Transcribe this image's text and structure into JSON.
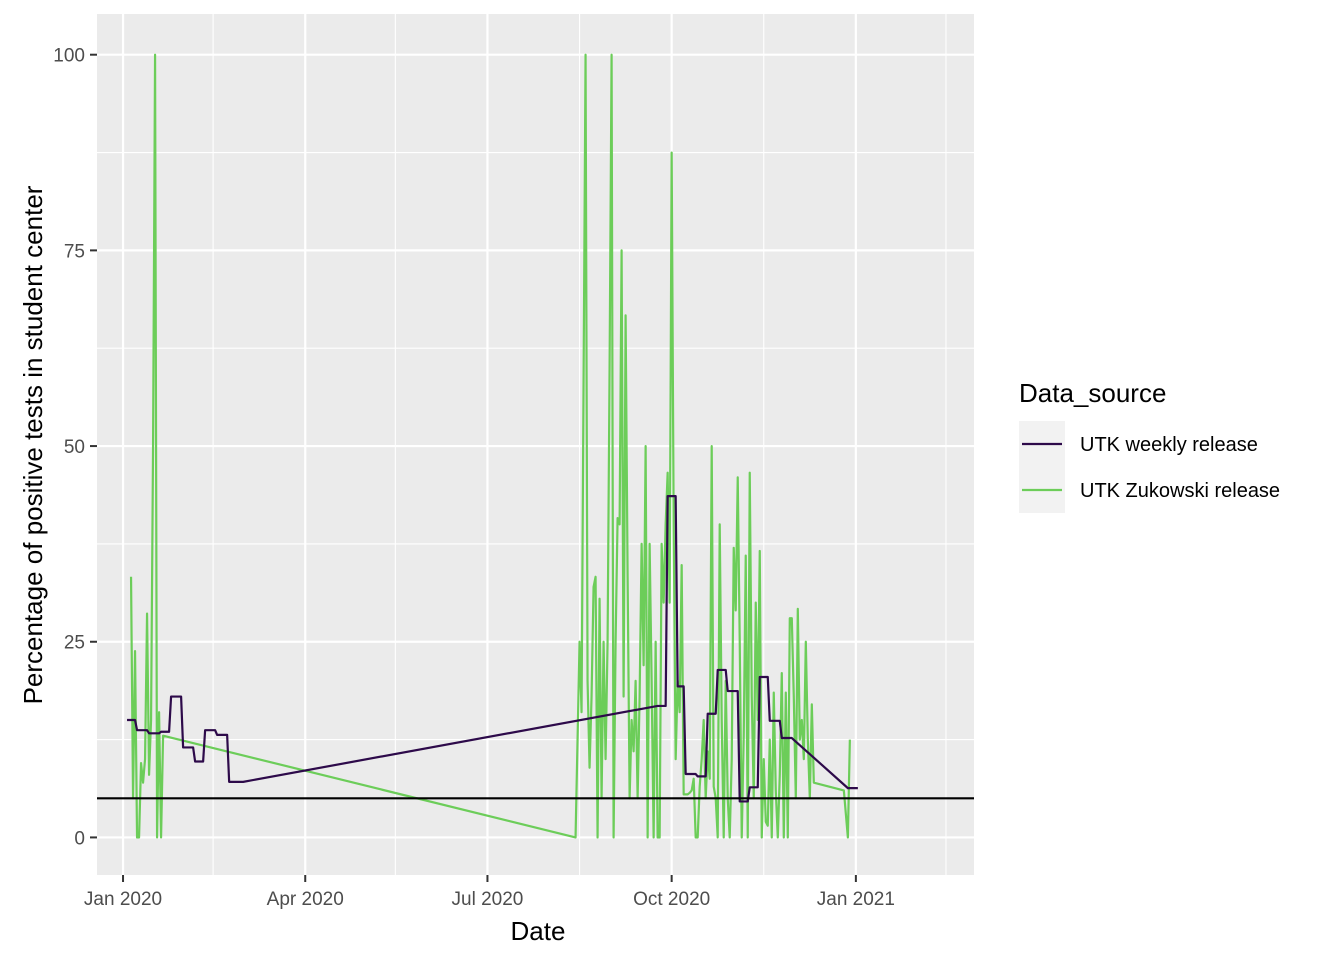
{
  "chart_data": {
    "type": "line",
    "title": "",
    "xlabel": "Date",
    "ylabel": "Percentage of positive tests in student center",
    "x_axis": {
      "type": "date",
      "range": [
        "2019-12-19",
        "2021-03-01"
      ],
      "ticks": [
        {
          "date": "2020-01-01",
          "label": "Jan 2020"
        },
        {
          "date": "2020-04-01",
          "label": "Apr 2020"
        },
        {
          "date": "2020-07-01",
          "label": "Jul 2020"
        },
        {
          "date": "2020-10-01",
          "label": "Oct 2020"
        },
        {
          "date": "2021-01-01",
          "label": "Jan 2021"
        }
      ],
      "minor_ticks": [
        "2020-02-15",
        "2020-05-16",
        "2020-08-16",
        "2020-11-16",
        "2021-02-15"
      ]
    },
    "y_axis": {
      "range": [
        -4.8,
        105.2
      ],
      "ticks": [
        0,
        25,
        50,
        75,
        100
      ],
      "tick_labels": [
        "0",
        "25",
        "50",
        "75",
        "100"
      ],
      "minor_ticks": [
        12.5,
        37.5,
        62.5,
        87.5
      ]
    },
    "grid": true,
    "reference_line": {
      "orientation": "horizontal",
      "y": 5,
      "color": "#000000"
    },
    "legend": {
      "title": "Data_source",
      "placement": "right"
    },
    "series": [
      {
        "name": "UTK Zukowski release",
        "color": "#6ccd59",
        "points": [
          [
            "2020-01-05",
            33.3
          ],
          [
            "2020-01-06",
            5
          ],
          [
            "2020-01-07",
            23.8
          ],
          [
            "2020-01-08",
            0
          ],
          [
            "2020-01-09",
            0
          ],
          [
            "2020-01-10",
            9.5
          ],
          [
            "2020-01-11",
            7
          ],
          [
            "2020-01-12",
            10
          ],
          [
            "2020-01-13",
            28.6
          ],
          [
            "2020-01-14",
            8
          ],
          [
            "2020-01-15",
            15
          ],
          [
            "2020-01-16",
            50
          ],
          [
            "2020-01-17",
            100
          ],
          [
            "2020-01-18",
            0
          ],
          [
            "2020-01-19",
            16
          ],
          [
            "2020-01-20",
            0
          ],
          [
            "2020-01-21",
            13
          ],
          [
            "2020-08-14",
            0
          ],
          [
            "2020-08-16",
            25
          ],
          [
            "2020-08-17",
            16
          ],
          [
            "2020-08-19",
            100
          ],
          [
            "2020-08-20",
            20
          ],
          [
            "2020-08-21",
            8.9
          ],
          [
            "2020-08-22",
            18
          ],
          [
            "2020-08-23",
            32
          ],
          [
            "2020-08-24",
            33.3
          ],
          [
            "2020-08-25",
            0
          ],
          [
            "2020-08-26",
            30.5
          ],
          [
            "2020-08-27",
            5
          ],
          [
            "2020-08-28",
            25
          ],
          [
            "2020-08-29",
            10
          ],
          [
            "2020-08-30",
            25
          ],
          [
            "2020-08-31",
            60
          ],
          [
            "2020-09-01",
            100
          ],
          [
            "2020-09-02",
            0
          ],
          [
            "2020-09-03",
            25
          ],
          [
            "2020-09-04",
            40.8
          ],
          [
            "2020-09-05",
            40
          ],
          [
            "2020-09-06",
            75
          ],
          [
            "2020-09-07",
            18
          ],
          [
            "2020-09-08",
            66.7
          ],
          [
            "2020-09-09",
            33.3
          ],
          [
            "2020-09-10",
            5
          ],
          [
            "2020-09-11",
            15
          ],
          [
            "2020-09-12",
            11
          ],
          [
            "2020-09-13",
            20
          ],
          [
            "2020-09-14",
            5
          ],
          [
            "2020-09-15",
            18
          ],
          [
            "2020-09-16",
            37.5
          ],
          [
            "2020-09-17",
            22
          ],
          [
            "2020-09-18",
            50
          ],
          [
            "2020-09-19",
            0
          ],
          [
            "2020-09-20",
            37.5
          ],
          [
            "2020-09-21",
            20
          ],
          [
            "2020-09-22",
            0
          ],
          [
            "2020-09-23",
            25
          ],
          [
            "2020-09-24",
            0
          ],
          [
            "2020-09-25",
            0
          ],
          [
            "2020-09-26",
            37.5
          ],
          [
            "2020-09-27",
            30
          ],
          [
            "2020-09-28",
            40
          ],
          [
            "2020-09-29",
            46.6
          ],
          [
            "2020-09-30",
            30
          ],
          [
            "2020-10-01",
            87.5
          ],
          [
            "2020-10-02",
            40
          ],
          [
            "2020-10-03",
            10
          ],
          [
            "2020-10-04",
            20
          ],
          [
            "2020-10-05",
            16
          ],
          [
            "2020-10-06",
            34.8
          ],
          [
            "2020-10-07",
            5.5
          ],
          [
            "2020-10-09",
            5.5
          ],
          [
            "2020-10-10",
            5.7
          ],
          [
            "2020-10-11",
            6
          ],
          [
            "2020-10-12",
            7.5
          ],
          [
            "2020-10-13",
            0
          ],
          [
            "2020-10-14",
            0
          ],
          [
            "2020-10-15",
            6.5
          ],
          [
            "2020-10-16",
            10
          ],
          [
            "2020-10-17",
            15
          ],
          [
            "2020-10-18",
            5
          ],
          [
            "2020-10-19",
            11
          ],
          [
            "2020-10-20",
            7.5
          ],
          [
            "2020-10-21",
            50
          ],
          [
            "2020-10-22",
            6.5
          ],
          [
            "2020-10-23",
            5
          ],
          [
            "2020-10-24",
            0
          ],
          [
            "2020-10-25",
            40
          ],
          [
            "2020-10-26",
            15
          ],
          [
            "2020-10-27",
            0
          ],
          [
            "2020-10-28",
            20
          ],
          [
            "2020-10-29",
            5
          ],
          [
            "2020-10-30",
            0
          ],
          [
            "2020-10-31",
            10
          ],
          [
            "2020-11-01",
            37
          ],
          [
            "2020-11-02",
            29
          ],
          [
            "2020-11-03",
            46
          ],
          [
            "2020-11-04",
            25
          ],
          [
            "2020-11-05",
            0
          ],
          [
            "2020-11-06",
            13
          ],
          [
            "2020-11-07",
            36
          ],
          [
            "2020-11-08",
            0
          ],
          [
            "2020-11-09",
            46.6
          ],
          [
            "2020-11-10",
            18
          ],
          [
            "2020-11-11",
            5
          ],
          [
            "2020-11-12",
            30
          ],
          [
            "2020-11-13",
            15
          ],
          [
            "2020-11-14",
            36.6
          ],
          [
            "2020-11-15",
            0
          ],
          [
            "2020-11-16",
            10
          ],
          [
            "2020-11-17",
            2
          ],
          [
            "2020-11-18",
            1.5
          ],
          [
            "2020-11-19",
            12.5
          ],
          [
            "2020-11-20",
            0
          ],
          [
            "2020-11-21",
            18.5
          ],
          [
            "2020-11-22",
            6
          ],
          [
            "2020-11-23",
            0
          ],
          [
            "2020-11-24",
            8
          ],
          [
            "2020-11-25",
            21
          ],
          [
            "2020-11-26",
            0
          ],
          [
            "2020-11-27",
            18.5
          ],
          [
            "2020-11-28",
            0
          ],
          [
            "2020-11-29",
            28
          ],
          [
            "2020-11-30",
            28
          ],
          [
            "2020-12-01",
            18
          ],
          [
            "2020-12-02",
            5
          ],
          [
            "2020-12-03",
            29.2
          ],
          [
            "2020-12-04",
            12.5
          ],
          [
            "2020-12-05",
            15
          ],
          [
            "2020-12-06",
            10
          ],
          [
            "2020-12-07",
            25
          ],
          [
            "2020-12-08",
            12.5
          ],
          [
            "2020-12-09",
            5
          ],
          [
            "2020-12-10",
            17
          ],
          [
            "2020-12-11",
            7
          ],
          [
            "2020-12-26",
            6
          ],
          [
            "2020-12-28",
            0
          ],
          [
            "2020-12-29",
            12.5
          ]
        ]
      },
      {
        "name": "UTK weekly release",
        "color": "#2d0a4a",
        "points": [
          [
            "2020-01-03",
            15
          ],
          [
            "2020-01-07",
            15
          ],
          [
            "2020-01-08",
            13.7
          ],
          [
            "2020-01-13",
            13.7
          ],
          [
            "2020-01-14",
            13.3
          ],
          [
            "2020-01-19",
            13.3
          ],
          [
            "2020-01-20",
            13.5
          ],
          [
            "2020-01-24",
            13.5
          ],
          [
            "2020-01-25",
            18
          ],
          [
            "2020-01-30",
            18
          ],
          [
            "2020-01-31",
            11.5
          ],
          [
            "2020-02-05",
            11.5
          ],
          [
            "2020-02-06",
            9.7
          ],
          [
            "2020-02-10",
            9.7
          ],
          [
            "2020-02-11",
            13.7
          ],
          [
            "2020-02-16",
            13.7
          ],
          [
            "2020-02-17",
            13.1
          ],
          [
            "2020-02-22",
            13.1
          ],
          [
            "2020-02-23",
            7.1
          ],
          [
            "2020-03-01",
            7.1
          ],
          [
            "2020-09-24",
            16.8
          ],
          [
            "2020-09-28",
            16.8
          ],
          [
            "2020-09-29",
            43.6
          ],
          [
            "2020-10-03",
            43.6
          ],
          [
            "2020-10-04",
            19.3
          ],
          [
            "2020-10-07",
            19.3
          ],
          [
            "2020-10-08",
            8.1
          ],
          [
            "2020-10-13",
            8.1
          ],
          [
            "2020-10-14",
            7.8
          ],
          [
            "2020-10-18",
            7.8
          ],
          [
            "2020-10-19",
            15.8
          ],
          [
            "2020-10-23",
            15.8
          ],
          [
            "2020-10-24",
            21.4
          ],
          [
            "2020-10-28",
            21.4
          ],
          [
            "2020-10-29",
            18.7
          ],
          [
            "2020-11-03",
            18.7
          ],
          [
            "2020-11-04",
            4.6
          ],
          [
            "2020-11-08",
            4.6
          ],
          [
            "2020-11-09",
            6.4
          ],
          [
            "2020-11-13",
            6.4
          ],
          [
            "2020-11-14",
            20.5
          ],
          [
            "2020-11-18",
            20.5
          ],
          [
            "2020-11-19",
            14.9
          ],
          [
            "2020-11-24",
            14.9
          ],
          [
            "2020-11-25",
            12.7
          ],
          [
            "2020-11-30",
            12.7
          ],
          [
            "2020-12-28",
            6.3
          ],
          [
            "2021-01-02",
            6.3
          ]
        ]
      }
    ]
  }
}
